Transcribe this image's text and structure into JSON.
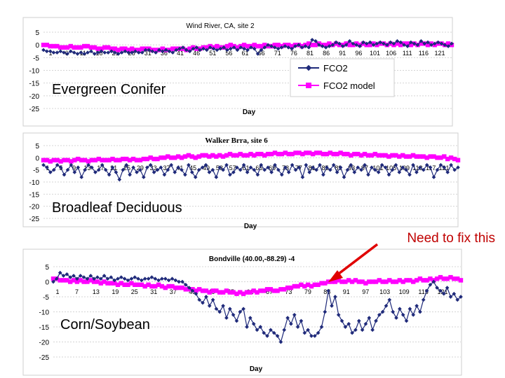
{
  "annotation": {
    "text": "Need to fix this",
    "color": "#c00000"
  },
  "colors": {
    "observed": "#1f2a7a",
    "model": "#ff00ff"
  },
  "legend": {
    "observed": "FCO2",
    "model": "FCO2 model"
  },
  "chart_data": [
    {
      "type": "line",
      "title": "Wind River, CA, site 2",
      "xlabel": "Day",
      "vegetation_label": "Evergreen Conifer",
      "ylim": [
        -25,
        5
      ],
      "yticks": [
        5,
        0,
        -5,
        -10,
        -15,
        -20,
        -25
      ],
      "xticks": [
        "1",
        "6",
        "11",
        "16",
        "21",
        "26",
        "31",
        "36",
        "41",
        "46",
        "51",
        "56",
        "61",
        "66",
        "71",
        "76",
        "81",
        "86",
        "91",
        "96",
        "101",
        "106",
        "111",
        "116",
        "121"
      ],
      "legend_placement": "bottom-right",
      "series": [
        {
          "name": "FCO2",
          "marker": "diamond",
          "values": [
            -2,
            -2.5,
            -2.5,
            -3,
            -3,
            -2.5,
            -3,
            -3.5,
            -2.5,
            -3,
            -3.5,
            -3,
            -3.5,
            -3,
            -2.5,
            -3.5,
            -3,
            -2.5,
            -3,
            -3,
            -2.5,
            -3,
            -3.5,
            -3,
            -2.5,
            -3,
            -3,
            -2.5,
            -3,
            -3,
            -2,
            -2,
            -2.5,
            -3,
            -2,
            -2.5,
            -2,
            -2.5,
            -3,
            -2,
            -1.5,
            -1,
            -2,
            -2.5,
            -1.5,
            -1,
            -2,
            -1.5,
            -2,
            -1,
            -1.5,
            -2,
            -1.5,
            -1,
            -2,
            -1.5,
            -1,
            -2,
            -1,
            -1.5,
            -2,
            -1,
            -1.5,
            -3.5,
            -2,
            -1,
            0,
            -0.5,
            -1,
            -1.5,
            -1,
            -0.5,
            -1,
            -1.5,
            -0.5,
            0,
            -1,
            -0.5,
            -1,
            2,
            1.5,
            0,
            -0.5,
            -1,
            -0.5,
            0,
            1,
            0.5,
            -0.5,
            0,
            1.5,
            0.5,
            0,
            -0.5,
            1,
            0.5,
            1,
            0,
            0.5,
            1,
            0.5,
            0,
            1,
            0.5,
            1.5,
            1,
            0,
            -0.5,
            1,
            0.5,
            0,
            1.5,
            0.5,
            1,
            0,
            0.5,
            1,
            0.5,
            0,
            -0.5,
            0.5
          ]
        },
        {
          "name": "FCO2 model",
          "marker": "square",
          "values": [
            0,
            0,
            -0.5,
            -0.5,
            -0.5,
            -1,
            -1,
            -1,
            -0.5,
            -1,
            -1,
            -1,
            -0.5,
            -0.5,
            -1,
            -1,
            -1.5,
            -1.5,
            -1,
            -1,
            -1.5,
            -1.5,
            -2,
            -1.5,
            -1.5,
            -2,
            -1.5,
            -2,
            -2,
            -1.5,
            -1.5,
            -1.5,
            -2,
            -2,
            -2,
            -1.5,
            -2,
            -2,
            -1.5,
            -1.5,
            -1.5,
            -1.5,
            -2,
            -1.5,
            -1,
            -1.5,
            -1.5,
            -1,
            -1,
            -0.5,
            -1,
            -0.5,
            -1,
            -1,
            -0.5,
            0,
            -0.5,
            -1,
            -0.5,
            0,
            -0.5,
            -0.5,
            0,
            -0.5,
            -0.5,
            0,
            -0.5,
            -0.5,
            0,
            0,
            -0.5,
            0,
            0,
            -0.5,
            0,
            0,
            -0.5,
            0,
            0.5,
            0,
            0,
            0.5,
            0,
            0,
            0.5,
            0,
            0.5,
            0,
            0,
            0.5,
            0,
            0,
            0.5,
            0,
            0.5,
            0,
            0,
            0.5,
            0,
            0.5,
            0.5,
            0,
            0.5,
            0,
            0.5,
            0,
            0.5,
            0.5,
            0,
            0.5,
            0,
            0.5,
            0.5,
            0,
            0.5,
            0,
            0.5,
            0.5,
            0,
            0.5,
            0
          ]
        }
      ]
    },
    {
      "type": "line",
      "title": "Walker Brra, site 6",
      "xlabel": "Day",
      "vegetation_label": "Broadleaf Deciduous",
      "ylim": [
        -25,
        5
      ],
      "yticks": [
        5,
        0,
        -5,
        -10,
        -15,
        -20,
        -25
      ],
      "xticks": [
        "1",
        "5",
        "9",
        "13",
        "17",
        "21",
        "25",
        "29",
        "33",
        "37",
        "41",
        "45",
        "49",
        "53",
        "57",
        "61",
        "65",
        "69",
        "73",
        "77",
        "81",
        "85",
        "89",
        "93",
        "97",
        "101",
        "105",
        "109",
        "113",
        "117",
        "121"
      ],
      "series": [
        {
          "name": "FCO2",
          "marker": "diamond",
          "values": [
            -3,
            -4,
            -6,
            -5,
            -3,
            -4,
            -7,
            -5,
            -3,
            -6,
            -4,
            -8,
            -5,
            -3,
            -4,
            -6,
            -5,
            -3,
            -5,
            -7,
            -4,
            -6,
            -9,
            -5,
            -3,
            -7,
            -4,
            -6,
            -5,
            -8,
            -4,
            -3,
            -6,
            -5,
            -4,
            -7,
            -5,
            -3,
            -6,
            -4,
            -5,
            -7,
            -3,
            -6,
            -8,
            -5,
            -4,
            -3,
            -6,
            -5,
            -8,
            -4,
            -5,
            -3,
            -7,
            -6,
            -4,
            -5,
            -3,
            -6,
            -4,
            -5,
            -7,
            -3,
            -5,
            -4,
            -6,
            -3,
            -5,
            -7,
            -4,
            -6,
            -3,
            -5,
            -4,
            -8,
            -3,
            -6,
            -4,
            -5,
            -3,
            -7,
            -4,
            -5,
            -3,
            -6,
            -4,
            -8,
            -5,
            -3,
            -6,
            -4,
            -5,
            -3,
            -7,
            -4,
            -5,
            -6,
            -3,
            -4,
            -7,
            -5,
            -3,
            -6,
            -4,
            -5,
            -7,
            -3,
            -6,
            -4,
            -5,
            -3,
            -4,
            -8,
            -5,
            -3,
            -4,
            -6,
            -3,
            -5,
            -4
          ]
        },
        {
          "name": "FCO2 model",
          "marker": "square",
          "values": [
            -1,
            -1,
            -1.5,
            -1,
            -1,
            -1.5,
            -1,
            -1,
            -1.5,
            -1,
            -0.5,
            -1,
            -1,
            -1.5,
            -1,
            -1,
            -0.5,
            -1,
            -1,
            -1,
            -0.5,
            -1,
            -1,
            -0.5,
            -0.5,
            -1,
            -0.5,
            -1,
            -1,
            -0.5,
            -0.5,
            0,
            -0.5,
            -0.5,
            0,
            0,
            0.5,
            0,
            0,
            0.5,
            0,
            0.5,
            1,
            0.5,
            0,
            0.5,
            1,
            1,
            0.5,
            1,
            0.5,
            1,
            0.5,
            1,
            1.5,
            1,
            1,
            1.5,
            1,
            1,
            1.5,
            1,
            1.5,
            1.5,
            1,
            1.5,
            1.5,
            2,
            1.5,
            1.5,
            2,
            1.5,
            1.5,
            2,
            2,
            1.5,
            2,
            2,
            1.5,
            2,
            2,
            1.5,
            1.5,
            2,
            1.5,
            1.5,
            2,
            1.5,
            1.5,
            1,
            1.5,
            1.5,
            1,
            1.5,
            1,
            1,
            1.5,
            1,
            1,
            1,
            0.5,
            1,
            1,
            0.5,
            1,
            0.5,
            0.5,
            1,
            0.5,
            0.5,
            0.5,
            0,
            0.5,
            0.5,
            0,
            0,
            0.5,
            -0.5,
            0,
            -0.5,
            -1
          ]
        }
      ]
    },
    {
      "type": "line",
      "title": "Bondville (40.00,-88.29) -4",
      "xlabel": "Day",
      "vegetation_label": "Corn/Soybean",
      "ylim": [
        -25,
        5
      ],
      "yticks": [
        5,
        0,
        -5,
        -10,
        -15,
        -20,
        -25
      ],
      "xticks": [
        "1",
        "7",
        "13",
        "19",
        "25",
        "31",
        "37",
        "43",
        "49",
        "55",
        "61",
        "67",
        "73",
        "79",
        "85",
        "91",
        "97",
        "103",
        "109",
        "115",
        "121"
      ],
      "series": [
        {
          "name": "FCO2",
          "marker": "diamond",
          "values": [
            0,
            1,
            3,
            2,
            2.5,
            1.5,
            2,
            1,
            2,
            1.5,
            1,
            2,
            1,
            1.5,
            1,
            2,
            1,
            1.5,
            0.5,
            1,
            1.5,
            1,
            0.5,
            1,
            1.5,
            1,
            0.5,
            1,
            1,
            1.5,
            1,
            0.5,
            1,
            1,
            0.5,
            1,
            0.5,
            0,
            0,
            -1,
            -2,
            -3,
            -4,
            -6,
            -7,
            -5,
            -8,
            -6,
            -9,
            -10,
            -8,
            -12,
            -9,
            -11,
            -13,
            -10,
            -9,
            -15,
            -12,
            -14,
            -16,
            -15,
            -17,
            -18,
            -16,
            -17,
            -18,
            -20,
            -16,
            -12,
            -14,
            -11,
            -15,
            -13,
            -17,
            -16,
            -18,
            -18,
            -17,
            -15,
            -10,
            -3,
            -8,
            -5,
            -11,
            -13,
            -15,
            -14,
            -17,
            -16,
            -13,
            -16,
            -14,
            -12,
            -16,
            -13,
            -11,
            -10,
            -8,
            -6,
            -10,
            -12,
            -9,
            -11,
            -13,
            -9,
            -11,
            -8,
            -10,
            -6,
            -3,
            -1,
            0,
            -2,
            -3,
            -4,
            -2,
            -5,
            -4,
            -6,
            -5
          ]
        },
        {
          "name": "FCO2 model",
          "marker": "square",
          "values": [
            1,
            1,
            0.5,
            0.5,
            0.5,
            0,
            0.5,
            0,
            0.5,
            0,
            0,
            0.5,
            0,
            0,
            -0.5,
            0,
            -0.5,
            -0.5,
            -0.5,
            -1,
            -0.5,
            -1,
            -1,
            -0.5,
            -1,
            -1,
            -1,
            -1.5,
            -1,
            -1.5,
            -1.5,
            -1,
            -1.5,
            -2,
            -1.5,
            -1.5,
            -2,
            -2,
            -2,
            -2.5,
            -2.5,
            -2.5,
            -3,
            -2.5,
            -3,
            -3,
            -3.5,
            -3,
            -3,
            -3.5,
            -3.5,
            -3,
            -3.5,
            -3.5,
            -4,
            -3.5,
            -4,
            -3.5,
            -3.5,
            -3,
            -3.5,
            -3,
            -3,
            -2.5,
            -2.5,
            -3,
            -3,
            -2.5,
            -2.5,
            -2,
            -2,
            -1.5,
            -1.5,
            -1,
            -1.5,
            -1,
            -1.5,
            -1,
            -1,
            -0.5,
            -0.5,
            0,
            0,
            0,
            0.5,
            0,
            0,
            0.5,
            0,
            0.5,
            0,
            0,
            -0.5,
            0,
            0,
            0,
            0.5,
            0,
            0,
            0.5,
            0,
            0,
            0.5,
            0,
            0.5,
            0.5,
            0,
            0.5,
            1,
            0.5,
            0.5,
            1,
            0.5,
            1,
            1.5,
            1,
            1,
            1.5,
            1,
            1,
            0.5
          ]
        }
      ]
    }
  ]
}
